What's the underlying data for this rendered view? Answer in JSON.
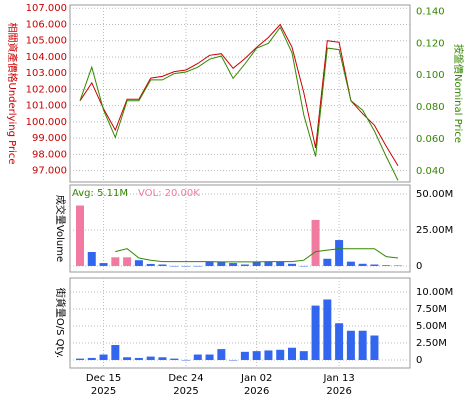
{
  "chart_data": [
    {
      "type": "line",
      "ylabel": "相關資產價格Underlying Price",
      "y2label": "按盤價Nominal Price",
      "ylim": [
        96.3,
        107.2
      ],
      "yticks": [
        {
          "value": 97,
          "label": "97.000"
        },
        {
          "value": 98,
          "label": "98.000"
        },
        {
          "value": 99,
          "label": "99.000"
        },
        {
          "value": 100,
          "label": "100.000"
        },
        {
          "value": 101,
          "label": "101.000"
        },
        {
          "value": 102,
          "label": "102.000"
        },
        {
          "value": 103,
          "label": "103.000"
        },
        {
          "value": 104,
          "label": "104.000"
        },
        {
          "value": 105,
          "label": "105.000"
        },
        {
          "value": 106,
          "label": "106.000"
        },
        {
          "value": 107,
          "label": "107.000"
        }
      ],
      "y2lim": [
        0.033,
        0.144
      ],
      "y2ticks": [
        {
          "value": 0.04,
          "label": "0.040"
        },
        {
          "value": 0.06,
          "label": "0.060"
        },
        {
          "value": 0.08,
          "label": "0.080"
        },
        {
          "value": 0.1,
          "label": "0.100"
        },
        {
          "value": 0.12,
          "label": "0.120"
        },
        {
          "value": 0.14,
          "label": "0.140"
        }
      ],
      "grid": true,
      "ycolor": "#cc0000",
      "y2color": "#338800",
      "series": [
        {
          "color": "#cc0000",
          "values": [
            101.3,
            102.4,
            100.8,
            99.5,
            101.4,
            101.4,
            102.7,
            102.8,
            103.1,
            103.2,
            103.6,
            104.1,
            104.2,
            103.3,
            103.9,
            104.6,
            105.2,
            106.0,
            104.6,
            101.8,
            98.4,
            105.0,
            104.9,
            101.3,
            100.5,
            99.8,
            98.5,
            97.3
          ]
        },
        {
          "color": "#338800",
          "axis": "y2",
          "values": [
            0.084,
            0.105,
            0.078,
            0.061,
            0.084,
            0.084,
            0.097,
            0.097,
            0.101,
            0.102,
            0.105,
            0.11,
            0.112,
            0.098,
            0.107,
            0.117,
            0.12,
            0.13,
            0.114,
            0.075,
            0.049,
            0.117,
            0.116,
            0.084,
            0.078,
            0.065,
            0.049,
            0.034
          ]
        }
      ]
    },
    {
      "type": "bar",
      "ylabel": "成交量Volume",
      "avg_label": "Avg: 5.11M",
      "vol_label": "VOL: 20.00K",
      "ylim": [
        -4200000,
        56250000
      ],
      "yticks": [
        {
          "value": 0,
          "label": "0"
        },
        {
          "value": 25000000,
          "label": "25.00M"
        },
        {
          "value": 50000000,
          "label": "50.00M"
        }
      ],
      "grid": true,
      "values": [
        42000000,
        9700000,
        2000000,
        6000000,
        6000000,
        4000000,
        1400000,
        1000000,
        0,
        0,
        0,
        3000000,
        3000000,
        2000000,
        1000000,
        3000000,
        3000000,
        3000000,
        1500000,
        0,
        32000000,
        5000000,
        18000000,
        3000000,
        1500000,
        1000000,
        500000,
        300000
      ],
      "colors": [
        "#f07aa0",
        "#3366ee",
        "#3366ee",
        "#f07aa0",
        "#f07aa0",
        "#3366ee",
        "#3366ee",
        "#3366ee",
        "#3366ee",
        "#3366ee",
        "#3366ee",
        "#3366ee",
        "#3366ee",
        "#3366ee",
        "#3366ee",
        "#3366ee",
        "#3366ee",
        "#3366ee",
        "#3366ee",
        "#3366ee",
        "#f07aa0",
        "#3366ee",
        "#3366ee",
        "#3366ee",
        "#3366ee",
        "#3366ee",
        "#3366ee",
        "#3366ee"
      ],
      "avg": {
        "color": "#338800",
        "values": [
          null,
          null,
          null,
          10000000,
          12000000,
          5500000,
          4000000,
          3000000,
          3000000,
          3000000,
          3000000,
          3000000,
          2800000,
          2800000,
          2800000,
          2800000,
          3000000,
          3000000,
          3000000,
          4000000,
          10000000,
          11000000,
          12000000,
          12000000,
          12000000,
          12000000,
          6500000,
          5500000
        ]
      }
    },
    {
      "type": "bar",
      "ylabel": "街貨量O/S Qty.",
      "ylim": [
        -1180000,
        12060000
      ],
      "yticks": [
        {
          "value": 0,
          "label": "0"
        },
        {
          "value": 2500000,
          "label": "2.50M"
        },
        {
          "value": 5000000,
          "label": "5.00M"
        },
        {
          "value": 7500000,
          "label": "7.50M"
        },
        {
          "value": 10000000,
          "label": "10.00M"
        }
      ],
      "grid": true,
      "color": "#3366ee",
      "values": [
        200000,
        300000,
        800000,
        2200000,
        400000,
        300000,
        500000,
        400000,
        200000,
        0,
        800000,
        800000,
        1600000,
        0,
        1200000,
        1300000,
        1400000,
        1500000,
        1800000,
        1300000,
        8000000,
        8900000,
        5400000,
        4300000,
        4300000,
        3600000,
        null,
        null
      ],
      "categories": [
        null,
        null,
        "Dec 15",
        null,
        null,
        null,
        null,
        null,
        null,
        "Dec 24",
        null,
        null,
        null,
        null,
        null,
        "Jan 02",
        null,
        null,
        null,
        null,
        null,
        null,
        "Jan 13",
        null,
        null,
        null,
        null,
        null
      ],
      "category_years": [
        null,
        null,
        "2025",
        null,
        null,
        null,
        null,
        null,
        null,
        "2025",
        null,
        null,
        null,
        null,
        null,
        "2026",
        null,
        null,
        null,
        null,
        null,
        null,
        "2026",
        null,
        null,
        null,
        null,
        null
      ]
    }
  ]
}
